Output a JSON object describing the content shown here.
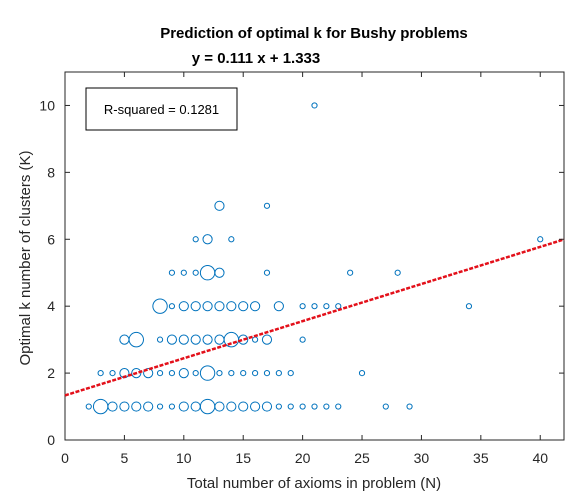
{
  "chart_data": {
    "type": "scatter",
    "title": "Prediction of optimal k for Bushy problems",
    "subtitle": "y = 0.111 x + 1.333",
    "xlabel": "Total number of axioms in problem (N)",
    "ylabel": "Optimal k number of clusters (K)",
    "xlim": [
      0,
      42
    ],
    "ylim": [
      0,
      11
    ],
    "xticks": [
      0,
      5,
      10,
      15,
      20,
      25,
      30,
      35,
      40
    ],
    "yticks": [
      0,
      2,
      4,
      6,
      8,
      10
    ],
    "grid": false,
    "annotation": "R-squared = 0.1281",
    "marker_color": "#0072BD",
    "trend_color": "#E3101A",
    "trendline": {
      "slope": 0.111,
      "intercept": 1.333
    },
    "points": [
      {
        "x": 2,
        "y": 1,
        "size": 1
      },
      {
        "x": 3,
        "y": 1,
        "size": 3
      },
      {
        "x": 4,
        "y": 1,
        "size": 2
      },
      {
        "x": 5,
        "y": 1,
        "size": 2
      },
      {
        "x": 6,
        "y": 1,
        "size": 2
      },
      {
        "x": 7,
        "y": 1,
        "size": 2
      },
      {
        "x": 8,
        "y": 1,
        "size": 1
      },
      {
        "x": 9,
        "y": 1,
        "size": 1
      },
      {
        "x": 10,
        "y": 1,
        "size": 2
      },
      {
        "x": 11,
        "y": 1,
        "size": 2
      },
      {
        "x": 12,
        "y": 1,
        "size": 3
      },
      {
        "x": 13,
        "y": 1,
        "size": 2
      },
      {
        "x": 14,
        "y": 1,
        "size": 2
      },
      {
        "x": 15,
        "y": 1,
        "size": 2
      },
      {
        "x": 16,
        "y": 1,
        "size": 2
      },
      {
        "x": 17,
        "y": 1,
        "size": 2
      },
      {
        "x": 18,
        "y": 1,
        "size": 1
      },
      {
        "x": 19,
        "y": 1,
        "size": 1
      },
      {
        "x": 20,
        "y": 1,
        "size": 1
      },
      {
        "x": 21,
        "y": 1,
        "size": 1
      },
      {
        "x": 22,
        "y": 1,
        "size": 1
      },
      {
        "x": 23,
        "y": 1,
        "size": 1
      },
      {
        "x": 27,
        "y": 1,
        "size": 1
      },
      {
        "x": 29,
        "y": 1,
        "size": 1
      },
      {
        "x": 3,
        "y": 2,
        "size": 1
      },
      {
        "x": 4,
        "y": 2,
        "size": 1
      },
      {
        "x": 5,
        "y": 2,
        "size": 2
      },
      {
        "x": 6,
        "y": 2,
        "size": 2
      },
      {
        "x": 7,
        "y": 2,
        "size": 2
      },
      {
        "x": 8,
        "y": 2,
        "size": 1
      },
      {
        "x": 9,
        "y": 2,
        "size": 1
      },
      {
        "x": 10,
        "y": 2,
        "size": 2
      },
      {
        "x": 11,
        "y": 2,
        "size": 1
      },
      {
        "x": 12,
        "y": 2,
        "size": 3
      },
      {
        "x": 13,
        "y": 2,
        "size": 1
      },
      {
        "x": 14,
        "y": 2,
        "size": 1
      },
      {
        "x": 15,
        "y": 2,
        "size": 1
      },
      {
        "x": 16,
        "y": 2,
        "size": 1
      },
      {
        "x": 17,
        "y": 2,
        "size": 1
      },
      {
        "x": 18,
        "y": 2,
        "size": 1
      },
      {
        "x": 19,
        "y": 2,
        "size": 1
      },
      {
        "x": 25,
        "y": 2,
        "size": 1
      },
      {
        "x": 5,
        "y": 3,
        "size": 2
      },
      {
        "x": 6,
        "y": 3,
        "size": 3
      },
      {
        "x": 8,
        "y": 3,
        "size": 1
      },
      {
        "x": 9,
        "y": 3,
        "size": 2
      },
      {
        "x": 10,
        "y": 3,
        "size": 2
      },
      {
        "x": 11,
        "y": 3,
        "size": 2
      },
      {
        "x": 12,
        "y": 3,
        "size": 2
      },
      {
        "x": 13,
        "y": 3,
        "size": 2
      },
      {
        "x": 14,
        "y": 3,
        "size": 3
      },
      {
        "x": 15,
        "y": 3,
        "size": 2
      },
      {
        "x": 16,
        "y": 3,
        "size": 1
      },
      {
        "x": 17,
        "y": 3,
        "size": 2
      },
      {
        "x": 20,
        "y": 3,
        "size": 1
      },
      {
        "x": 8,
        "y": 4,
        "size": 3
      },
      {
        "x": 9,
        "y": 4,
        "size": 1
      },
      {
        "x": 10,
        "y": 4,
        "size": 2
      },
      {
        "x": 11,
        "y": 4,
        "size": 2
      },
      {
        "x": 12,
        "y": 4,
        "size": 2
      },
      {
        "x": 13,
        "y": 4,
        "size": 2
      },
      {
        "x": 14,
        "y": 4,
        "size": 2
      },
      {
        "x": 15,
        "y": 4,
        "size": 2
      },
      {
        "x": 16,
        "y": 4,
        "size": 2
      },
      {
        "x": 18,
        "y": 4,
        "size": 2
      },
      {
        "x": 20,
        "y": 4,
        "size": 1
      },
      {
        "x": 21,
        "y": 4,
        "size": 1
      },
      {
        "x": 22,
        "y": 4,
        "size": 1
      },
      {
        "x": 23,
        "y": 4,
        "size": 1
      },
      {
        "x": 34,
        "y": 4,
        "size": 1
      },
      {
        "x": 9,
        "y": 5,
        "size": 1
      },
      {
        "x": 10,
        "y": 5,
        "size": 1
      },
      {
        "x": 11,
        "y": 5,
        "size": 1
      },
      {
        "x": 12,
        "y": 5,
        "size": 3
      },
      {
        "x": 13,
        "y": 5,
        "size": 2
      },
      {
        "x": 17,
        "y": 5,
        "size": 1
      },
      {
        "x": 24,
        "y": 5,
        "size": 1
      },
      {
        "x": 28,
        "y": 5,
        "size": 1
      },
      {
        "x": 11,
        "y": 6,
        "size": 1
      },
      {
        "x": 12,
        "y": 6,
        "size": 2
      },
      {
        "x": 14,
        "y": 6,
        "size": 1
      },
      {
        "x": 40,
        "y": 6,
        "size": 1
      },
      {
        "x": 13,
        "y": 7,
        "size": 2
      },
      {
        "x": 17,
        "y": 7,
        "size": 1
      },
      {
        "x": 21,
        "y": 10,
        "size": 1
      }
    ]
  }
}
